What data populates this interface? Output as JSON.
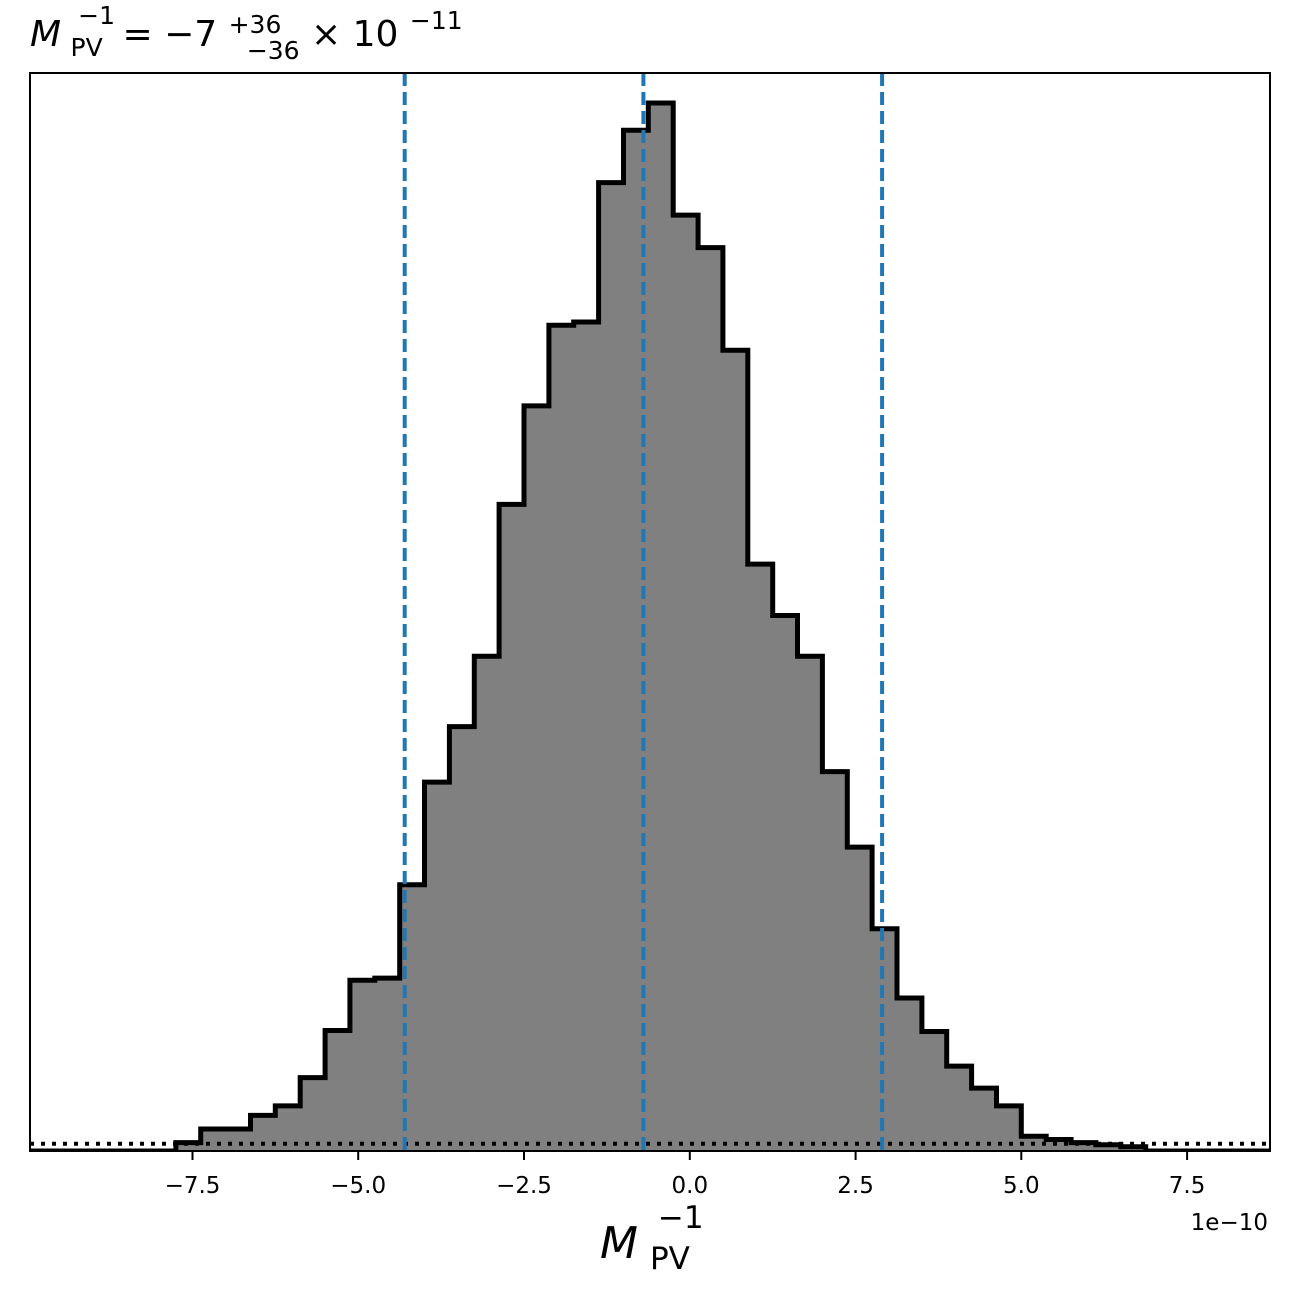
{
  "chart_data": {
    "type": "histogram",
    "title": {
      "lhs": "M",
      "lhs_sub": "PV",
      "lhs_sup": "−1",
      "equals": " = ",
      "value": "−7",
      "upper": "+36",
      "lower": "−36",
      "times": " × 10",
      "exponent": "−11"
    },
    "xlabel": {
      "main": "M",
      "sub": "PV",
      "sup": "−1"
    },
    "offset_text": "1e−10",
    "x_scale": 1e-10,
    "xlim": [
      -9.95,
      8.75
    ],
    "ylim": [
      0,
      1.0
    ],
    "x_ticks": [
      -7.5,
      -5.0,
      -2.5,
      0.0,
      2.5,
      5.0,
      7.5
    ],
    "x_tick_labels": [
      "−7.5",
      "−5.0",
      "−2.5",
      "0.0",
      "2.5",
      "5.0",
      "7.5"
    ],
    "y_ticks_visible": false,
    "bin_edges": [
      -7.75,
      -7.375,
      -7.0,
      -6.625,
      -6.25,
      -5.875,
      -5.5,
      -5.125,
      -4.75,
      -4.375,
      -4.0,
      -3.625,
      -3.25,
      -2.875,
      -2.5,
      -2.125,
      -1.75,
      -1.375,
      -1.0,
      -0.625,
      -0.25,
      0.125,
      0.5,
      0.875,
      1.25,
      1.625,
      2.0,
      2.375,
      2.75,
      3.125,
      3.5,
      3.875,
      4.25,
      4.625,
      5.0,
      5.375,
      5.75,
      6.125,
      6.5,
      6.875
    ],
    "counts": [
      0.008,
      0.021,
      0.021,
      0.034,
      0.043,
      0.07,
      0.115,
      0.163,
      0.165,
      0.254,
      0.352,
      0.405,
      0.472,
      0.617,
      0.711,
      0.788,
      0.791,
      0.924,
      0.974,
      1.0,
      0.893,
      0.862,
      0.764,
      0.56,
      0.511,
      0.472,
      0.362,
      0.29,
      0.212,
      0.146,
      0.114,
      0.081,
      0.06,
      0.043,
      0.014,
      0.011,
      0.008,
      0.006,
      0.004
    ],
    "quantile_lines": [
      -4.3,
      -0.7,
      2.9
    ],
    "quantile_line_color": "#1f77b4",
    "baseline_dotted_y": 0.007,
    "fill_color": "#808080",
    "edge_color": "#000000"
  }
}
